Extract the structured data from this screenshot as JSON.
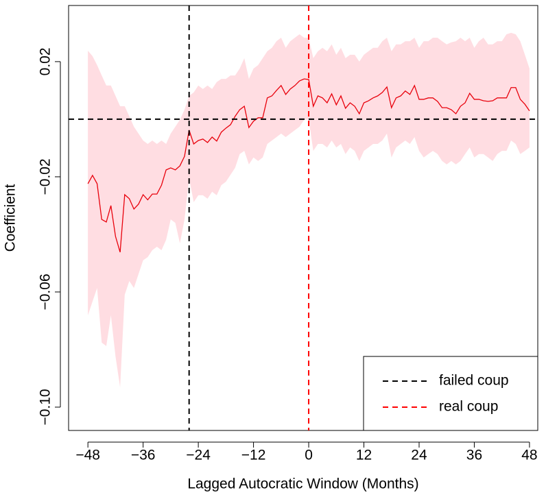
{
  "chart_data": {
    "type": "line",
    "xlabel": "Lagged Autocratic Window (Months)",
    "ylabel": "Coefficient",
    "xlim": [
      -52.2,
      49.8
    ],
    "ylim": [
      -0.1081,
      0.0395
    ],
    "xticks": [
      {
        "value": -48,
        "label": "−48"
      },
      {
        "value": -36,
        "label": "−36"
      },
      {
        "value": -24,
        "label": "−24"
      },
      {
        "value": -12,
        "label": "−12"
      },
      0,
      12,
      24,
      36,
      48
    ],
    "yticks": [
      {
        "value": -0.1,
        "label": "−0.10"
      },
      {
        "value": -0.06,
        "label": "−0.06"
      },
      {
        "value": -0.02,
        "label": "−0.02"
      },
      {
        "value": 0.02,
        "label": "0.02"
      }
    ],
    "x": [
      -48,
      -47,
      -46,
      -45,
      -44,
      -43,
      -42,
      -41,
      -40,
      -39,
      -38,
      -37,
      -36,
      -35,
      -34,
      -33,
      -32,
      -31,
      -30,
      -29,
      -28,
      -27,
      -26,
      -25,
      -24,
      -23,
      -22,
      -21,
      -20,
      -19,
      -18,
      -17,
      -16,
      -15,
      -14,
      -13,
      -12,
      -11,
      -10,
      -9,
      -8,
      -7,
      -6,
      -5,
      -4,
      -3,
      -2,
      -1,
      0,
      1,
      2,
      3,
      4,
      5,
      6,
      7,
      8,
      9,
      10,
      11,
      12,
      13,
      14,
      15,
      16,
      17,
      18,
      19,
      20,
      21,
      22,
      23,
      24,
      25,
      26,
      27,
      28,
      29,
      30,
      31,
      32,
      33,
      34,
      35,
      36,
      37,
      38,
      39,
      40,
      41,
      42,
      43,
      44,
      45,
      46,
      47,
      48
    ],
    "series": [
      {
        "color": "#e8000b",
        "band_color": "#ffdde2",
        "values": [
          -0.0224,
          -0.0195,
          -0.0224,
          -0.0348,
          -0.0357,
          -0.03,
          -0.0407,
          -0.0462,
          -0.0262,
          -0.0276,
          -0.0312,
          -0.0295,
          -0.0262,
          -0.028,
          -0.026,
          -0.026,
          -0.0229,
          -0.0176,
          -0.0169,
          -0.0176,
          -0.0162,
          -0.0129,
          -0.0038,
          -0.0086,
          -0.0074,
          -0.0069,
          -0.0081,
          -0.0062,
          -0.0076,
          -0.0045,
          -0.0031,
          -0.0019,
          0.001,
          0.0033,
          0.0045,
          -0.0029,
          -0.0007,
          0.0005,
          0.0005,
          0.0074,
          0.0081,
          0.01,
          0.0117,
          0.0086,
          0.0105,
          0.0117,
          0.0133,
          0.014,
          0.0138,
          0.0045,
          0.0081,
          0.0074,
          0.0057,
          0.0088,
          0.005,
          0.0081,
          0.0038,
          0.0057,
          0.0045,
          0.0019,
          0.0057,
          0.0064,
          0.0074,
          0.0081,
          0.0093,
          0.0112,
          0.004,
          0.0074,
          0.0081,
          0.0098,
          0.0086,
          0.0117,
          0.0069,
          0.0069,
          0.0074,
          0.0074,
          0.0062,
          0.004,
          0.004,
          0.0033,
          0.0019,
          0.0045,
          0.0057,
          0.009,
          0.0069,
          0.0069,
          0.0064,
          0.0062,
          0.0064,
          0.0074,
          0.0074,
          0.0074,
          0.011,
          0.011,
          0.0069,
          0.0052,
          0.0029
        ],
        "upper": [
          0.0238,
          0.0219,
          0.0188,
          0.0152,
          0.0117,
          0.0117,
          0.0081,
          0.0045,
          0.0045,
          0.001,
          -0.0026,
          -0.005,
          -0.0074,
          -0.0086,
          -0.0074,
          -0.0086,
          -0.0074,
          -0.0086,
          -0.005,
          -0.0026,
          -0.0002,
          0.0033,
          0.0081,
          0.0093,
          0.0117,
          0.0105,
          0.0117,
          0.0105,
          0.0129,
          0.014,
          0.014,
          0.0152,
          0.0152,
          0.0176,
          0.0212,
          0.014,
          0.0176,
          0.0188,
          0.0212,
          0.0236,
          0.0248,
          0.0271,
          0.0283,
          0.0248,
          0.0271,
          0.0283,
          0.0295,
          0.0283,
          0.0283,
          0.0212,
          0.0236,
          0.0248,
          0.0236,
          0.026,
          0.0224,
          0.0248,
          0.0212,
          0.0224,
          0.0224,
          0.02,
          0.0224,
          0.0236,
          0.0248,
          0.0248,
          0.0271,
          0.0283,
          0.0236,
          0.026,
          0.026,
          0.0271,
          0.0271,
          0.0283,
          0.0248,
          0.0271,
          0.0271,
          0.0283,
          0.0283,
          0.0271,
          0.026,
          0.0267,
          0.0271,
          0.0283,
          0.0271,
          0.0283,
          0.0248,
          0.0271,
          0.0283,
          0.026,
          0.026,
          0.0271,
          0.0271,
          0.0295,
          0.03,
          0.0295,
          0.0271,
          0.0224,
          0.0176
        ],
        "lower": [
          -0.0681,
          -0.0633,
          -0.0586,
          -0.0776,
          -0.0788,
          -0.0681,
          -0.0824,
          -0.0931,
          -0.061,
          -0.0562,
          -0.0586,
          -0.0538,
          -0.049,
          -0.0479,
          -0.0455,
          -0.0443,
          -0.0455,
          -0.0419,
          -0.0348,
          -0.036,
          -0.0431,
          -0.0348,
          -0.0205,
          -0.0288,
          -0.0264,
          -0.0264,
          -0.0276,
          -0.0252,
          -0.0264,
          -0.0229,
          -0.0217,
          -0.0193,
          -0.0169,
          -0.0121,
          -0.011,
          -0.0157,
          -0.0133,
          -0.0145,
          -0.0133,
          -0.0086,
          -0.0074,
          -0.0062,
          -0.005,
          -0.0062,
          -0.005,
          -0.0038,
          -0.0026,
          -0.0002,
          -0.0002,
          -0.011,
          -0.0086,
          -0.0086,
          -0.0098,
          -0.0074,
          -0.0098,
          -0.0086,
          -0.0121,
          -0.0098,
          -0.011,
          -0.0145,
          -0.011,
          -0.0098,
          -0.0086,
          -0.0086,
          -0.0074,
          -0.005,
          -0.0133,
          -0.0098,
          -0.0086,
          -0.0074,
          -0.0086,
          -0.0062,
          -0.011,
          -0.0133,
          -0.0121,
          -0.011,
          -0.0121,
          -0.0145,
          -0.0157,
          -0.0145,
          -0.0157,
          -0.0145,
          -0.0121,
          -0.0098,
          -0.0133,
          -0.0121,
          -0.0121,
          -0.0133,
          -0.0145,
          -0.0121,
          -0.011,
          -0.011,
          -0.0074,
          -0.0086,
          -0.0121,
          -0.011,
          -0.0098
        ]
      }
    ],
    "hlines": [
      {
        "value": 0,
        "color": "#000000"
      }
    ],
    "vlines": [
      {
        "name": "failed coup",
        "value": -26,
        "color": "#000000"
      },
      {
        "name": "real coup",
        "value": 0,
        "color": "#ff0000"
      }
    ],
    "legend": "bottom-right"
  }
}
